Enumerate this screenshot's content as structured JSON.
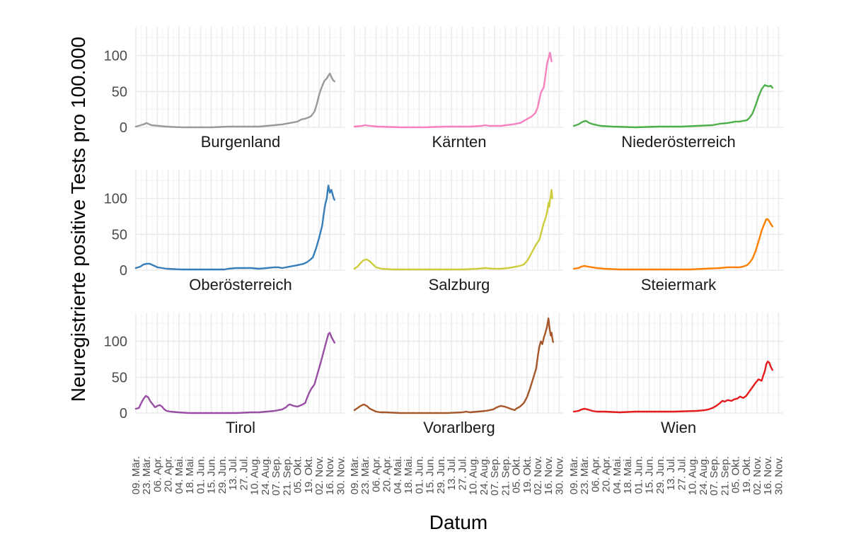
{
  "chart_data": {
    "type": "line",
    "layout": "facet-grid 3x3",
    "xlabel": "Datum",
    "ylabel": "Neuregistrierte positive Tests pro 100.000",
    "ylim": [
      0,
      140
    ],
    "yticks": [
      0,
      50,
      100
    ],
    "x_range_days": [
      0,
      272
    ],
    "x_ticks": [
      {
        "day": 0,
        "label": "09. Mär."
      },
      {
        "day": 14,
        "label": "23. Mär."
      },
      {
        "day": 28,
        "label": "06. Apr."
      },
      {
        "day": 42,
        "label": "20. Apr."
      },
      {
        "day": 56,
        "label": "04. Mai."
      },
      {
        "day": 70,
        "label": "18. Mai."
      },
      {
        "day": 84,
        "label": "01. Jun."
      },
      {
        "day": 98,
        "label": "15. Jun."
      },
      {
        "day": 112,
        "label": "29. Jun."
      },
      {
        "day": 126,
        "label": "13. Jul."
      },
      {
        "day": 140,
        "label": "27. Jul."
      },
      {
        "day": 154,
        "label": "10. Aug."
      },
      {
        "day": 168,
        "label": "24. Aug."
      },
      {
        "day": 182,
        "label": "07. Sep."
      },
      {
        "day": 196,
        "label": "21. Sep."
      },
      {
        "day": 210,
        "label": "05. Okt."
      },
      {
        "day": 224,
        "label": "19. Okt."
      },
      {
        "day": 238,
        "label": "02. Nov."
      },
      {
        "day": 252,
        "label": "16. Nov."
      },
      {
        "day": 266,
        "label": "30. Nov."
      }
    ],
    "series": [
      {
        "name": "Burgenland",
        "color": "#999999",
        "x": [
          0,
          10,
          14,
          20,
          30,
          40,
          60,
          80,
          100,
          120,
          140,
          160,
          170,
          180,
          190,
          200,
          210,
          215,
          220,
          225,
          228,
          232,
          235,
          238,
          240,
          243,
          245,
          248,
          250,
          252,
          254,
          256,
          258
        ],
        "y": [
          1,
          4,
          6,
          3,
          2,
          1,
          0,
          0,
          0,
          1,
          1,
          1,
          2,
          3,
          4,
          6,
          8,
          11,
          12,
          14,
          16,
          22,
          32,
          45,
          52,
          60,
          65,
          68,
          72,
          75,
          70,
          66,
          64
        ]
      },
      {
        "name": "Kärnten",
        "color": "#F781BF",
        "x": [
          0,
          10,
          14,
          20,
          30,
          60,
          90,
          120,
          150,
          165,
          170,
          175,
          190,
          205,
          215,
          220,
          225,
          230,
          235,
          238,
          240,
          242,
          244,
          246,
          248,
          250,
          252,
          254,
          256
        ],
        "y": [
          1,
          2,
          3,
          2,
          1,
          0,
          0,
          1,
          1,
          2,
          3,
          2,
          2,
          4,
          6,
          9,
          12,
          15,
          20,
          28,
          38,
          48,
          52,
          56,
          72,
          88,
          96,
          104,
          92
        ]
      },
      {
        "name": "Niederösterreich",
        "color": "#4DAF4A",
        "x": [
          0,
          6,
          12,
          16,
          20,
          26,
          35,
          50,
          80,
          110,
          140,
          160,
          180,
          190,
          200,
          205,
          210,
          215,
          220,
          225,
          228,
          232,
          236,
          240,
          244,
          248,
          250,
          253,
          256,
          258
        ],
        "y": [
          2,
          4,
          8,
          9,
          6,
          4,
          2,
          1,
          0,
          1,
          1,
          2,
          3,
          5,
          6,
          7,
          8,
          8,
          9,
          10,
          13,
          19,
          30,
          43,
          53,
          59,
          58,
          57,
          58,
          55
        ]
      },
      {
        "name": "Oberösterreich",
        "color": "#377EB8",
        "x": [
          0,
          6,
          10,
          14,
          18,
          22,
          28,
          40,
          60,
          90,
          115,
          120,
          130,
          140,
          150,
          160,
          170,
          180,
          185,
          190,
          200,
          210,
          218,
          222,
          226,
          230,
          234,
          238,
          242,
          244,
          246,
          248,
          249,
          250,
          252,
          254,
          256,
          257,
          258
        ],
        "y": [
          3,
          5,
          8,
          9,
          9,
          7,
          4,
          2,
          1,
          1,
          1,
          2,
          3,
          3,
          3,
          2,
          3,
          4,
          4,
          3,
          5,
          7,
          9,
          11,
          14,
          18,
          30,
          45,
          62,
          78,
          92,
          100,
          110,
          118,
          108,
          112,
          104,
          100,
          98
        ]
      },
      {
        "name": "Salzburg",
        "color": "#CDCD3C",
        "x": [
          0,
          4,
          8,
          12,
          16,
          20,
          24,
          28,
          35,
          50,
          80,
          110,
          140,
          160,
          170,
          180,
          190,
          200,
          210,
          215,
          220,
          225,
          228,
          232,
          236,
          240,
          242,
          244,
          246,
          248,
          250,
          251,
          252,
          253,
          254,
          255,
          256,
          257
        ],
        "y": [
          2,
          5,
          10,
          14,
          15,
          12,
          8,
          4,
          2,
          1,
          1,
          1,
          1,
          2,
          3,
          2,
          2,
          3,
          5,
          6,
          8,
          14,
          20,
          28,
          36,
          42,
          50,
          58,
          66,
          72,
          80,
          86,
          94,
          88,
          98,
          104,
          112,
          100
        ]
      },
      {
        "name": "Steiermark",
        "color": "#FF7F00",
        "x": [
          0,
          6,
          10,
          14,
          18,
          24,
          30,
          40,
          60,
          90,
          120,
          150,
          170,
          190,
          200,
          210,
          215,
          220,
          225,
          228,
          232,
          236,
          240,
          244,
          248,
          250,
          252,
          254,
          256,
          258
        ],
        "y": [
          2,
          3,
          5,
          6,
          5,
          4,
          3,
          2,
          1,
          1,
          1,
          1,
          2,
          3,
          4,
          4,
          4,
          5,
          7,
          10,
          16,
          26,
          40,
          55,
          66,
          71,
          71,
          68,
          64,
          61
        ]
      },
      {
        "name": "Tirol",
        "color": "#984EA3",
        "x": [
          0,
          4,
          7,
          10,
          13,
          16,
          19,
          22,
          25,
          28,
          31,
          34,
          37,
          40,
          45,
          55,
          70,
          100,
          130,
          150,
          160,
          170,
          180,
          185,
          190,
          195,
          198,
          200,
          205,
          210,
          215,
          220,
          222,
          225,
          228,
          232,
          236,
          240,
          244,
          248,
          250,
          252,
          254,
          256,
          258
        ],
        "y": [
          6,
          7,
          14,
          20,
          24,
          22,
          16,
          12,
          8,
          10,
          11,
          9,
          5,
          3,
          2,
          1,
          0,
          0,
          0,
          1,
          1,
          2,
          3,
          4,
          5,
          8,
          11,
          12,
          10,
          9,
          11,
          14,
          20,
          28,
          34,
          40,
          55,
          70,
          86,
          102,
          110,
          112,
          106,
          102,
          98
        ]
      },
      {
        "name": "Vorarlberg",
        "color": "#A65628",
        "x": [
          0,
          4,
          8,
          12,
          16,
          20,
          24,
          28,
          34,
          40,
          60,
          90,
          120,
          140,
          145,
          150,
          160,
          170,
          180,
          185,
          190,
          195,
          200,
          205,
          208,
          210,
          215,
          220,
          224,
          228,
          232,
          236,
          238,
          240,
          242,
          244,
          246,
          248,
          250,
          252,
          253,
          254,
          255,
          256,
          257,
          258
        ],
        "y": [
          4,
          7,
          10,
          12,
          10,
          6,
          4,
          2,
          1,
          1,
          0,
          0,
          0,
          1,
          2,
          1,
          2,
          3,
          5,
          8,
          10,
          9,
          7,
          5,
          4,
          6,
          9,
          14,
          22,
          34,
          48,
          62,
          78,
          92,
          100,
          96,
          105,
          112,
          120,
          132,
          122,
          114,
          108,
          112,
          104,
          99
        ]
      },
      {
        "name": "Wien",
        "color": "#E41A1C",
        "x": [
          0,
          6,
          10,
          14,
          18,
          24,
          30,
          40,
          60,
          80,
          100,
          130,
          160,
          170,
          175,
          180,
          185,
          190,
          193,
          196,
          200,
          205,
          208,
          212,
          216,
          220,
          224,
          228,
          232,
          236,
          240,
          244,
          246,
          248,
          250,
          252,
          254,
          256,
          258
        ],
        "y": [
          2,
          3,
          5,
          6,
          5,
          3,
          2,
          2,
          1,
          2,
          2,
          2,
          3,
          4,
          5,
          7,
          10,
          14,
          17,
          16,
          18,
          17,
          19,
          20,
          23,
          21,
          24,
          30,
          36,
          42,
          47,
          45,
          52,
          58,
          68,
          72,
          70,
          64,
          60
        ]
      }
    ]
  }
}
